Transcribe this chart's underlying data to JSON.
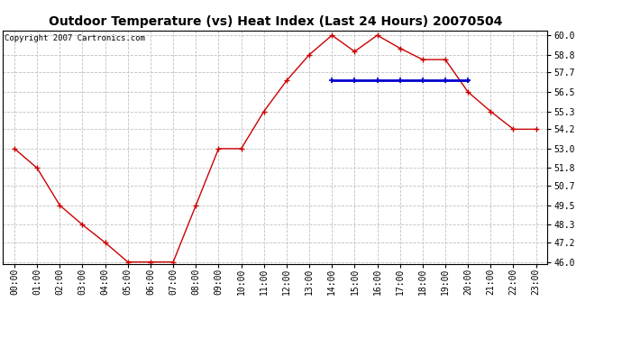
{
  "title": "Outdoor Temperature (vs) Heat Index (Last 24 Hours) 20070504",
  "copyright_text": "Copyright 2007 Cartronics.com",
  "x_labels": [
    "00:00",
    "01:00",
    "02:00",
    "03:00",
    "04:00",
    "05:00",
    "06:00",
    "07:00",
    "08:00",
    "09:00",
    "10:00",
    "11:00",
    "12:00",
    "13:00",
    "14:00",
    "15:00",
    "16:00",
    "17:00",
    "18:00",
    "19:00",
    "20:00",
    "21:00",
    "22:00",
    "23:00"
  ],
  "temp_data": [
    53.0,
    51.8,
    49.5,
    48.3,
    47.2,
    46.0,
    46.0,
    46.0,
    49.5,
    53.0,
    53.0,
    55.3,
    57.2,
    58.8,
    60.0,
    59.0,
    60.0,
    59.2,
    58.5,
    58.5,
    56.5,
    55.3,
    54.2,
    54.2
  ],
  "heat_index_data": [
    null,
    null,
    null,
    null,
    null,
    null,
    null,
    null,
    null,
    null,
    null,
    null,
    null,
    null,
    57.2,
    57.2,
    57.2,
    57.2,
    57.2,
    57.2,
    57.2,
    null,
    null,
    null
  ],
  "temp_color": "#cc0000",
  "heat_color": "#0000cc",
  "y_min": 46.0,
  "y_max": 60.0,
  "y_ticks": [
    46.0,
    47.2,
    48.3,
    49.5,
    50.7,
    51.8,
    53.0,
    54.2,
    55.3,
    56.5,
    57.7,
    58.8,
    60.0
  ],
  "y_tick_labels": [
    "46.0",
    "47.2",
    "48.3",
    "49.5",
    "50.7",
    "51.8",
    "53.0",
    "54.2",
    "55.3",
    "56.5",
    "57.7",
    "58.8",
    "60.0"
  ],
  "background_color": "#ffffff",
  "grid_color": "#c0c0c0",
  "title_fontsize": 10,
  "copyright_fontsize": 6.5,
  "tick_fontsize": 7,
  "marker_size": 4,
  "line_width": 1.0
}
